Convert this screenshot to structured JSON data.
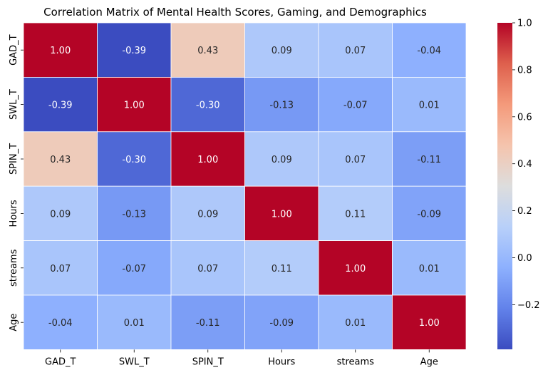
{
  "chart_data": {
    "type": "heatmap",
    "title": "Correlation Matrix of Mental Health Scores, Gaming, and Demographics",
    "row_labels": [
      "GAD_T",
      "SWL_T",
      "SPIN_T",
      "Hours",
      "streams",
      "Age"
    ],
    "col_labels": [
      "GAD_T",
      "SWL_T",
      "SPIN_T",
      "Hours",
      "streams",
      "Age"
    ],
    "values": [
      [
        1.0,
        -0.39,
        0.43,
        0.09,
        0.07,
        -0.04
      ],
      [
        -0.39,
        1.0,
        -0.3,
        -0.13,
        -0.07,
        0.01
      ],
      [
        0.43,
        -0.3,
        1.0,
        0.09,
        0.07,
        -0.11
      ],
      [
        0.09,
        -0.13,
        0.09,
        1.0,
        0.11,
        -0.09
      ],
      [
        0.07,
        -0.07,
        0.07,
        0.11,
        1.0,
        0.01
      ],
      [
        -0.04,
        0.01,
        -0.11,
        -0.09,
        0.01,
        1.0
      ]
    ],
    "cell_labels": [
      [
        "1.00",
        "-0.39",
        "0.43",
        "0.09",
        "0.07",
        "-0.04"
      ],
      [
        "-0.39",
        "1.00",
        "-0.30",
        "-0.13",
        "-0.07",
        "0.01"
      ],
      [
        "0.43",
        "-0.30",
        "1.00",
        "0.09",
        "0.07",
        "-0.11"
      ],
      [
        "0.09",
        "-0.13",
        "0.09",
        "1.00",
        "0.11",
        "-0.09"
      ],
      [
        "0.07",
        "-0.07",
        "0.07",
        "0.11",
        "1.00",
        "0.01"
      ],
      [
        "-0.04",
        "0.01",
        "-0.11",
        "-0.09",
        "0.01",
        "1.00"
      ]
    ],
    "colormap": "coolwarm",
    "vmin": -0.39,
    "vmax": 1.0,
    "colorbar_ticks": [
      1.0,
      0.8,
      0.6,
      0.4,
      0.2,
      0.0,
      -0.2
    ],
    "colorbar_tick_labels": [
      "1.0",
      "0.8",
      "0.6",
      "0.4",
      "0.2",
      "0.0",
      "−0.2"
    ],
    "grid": true,
    "cell_border_color": "#ffffff"
  }
}
